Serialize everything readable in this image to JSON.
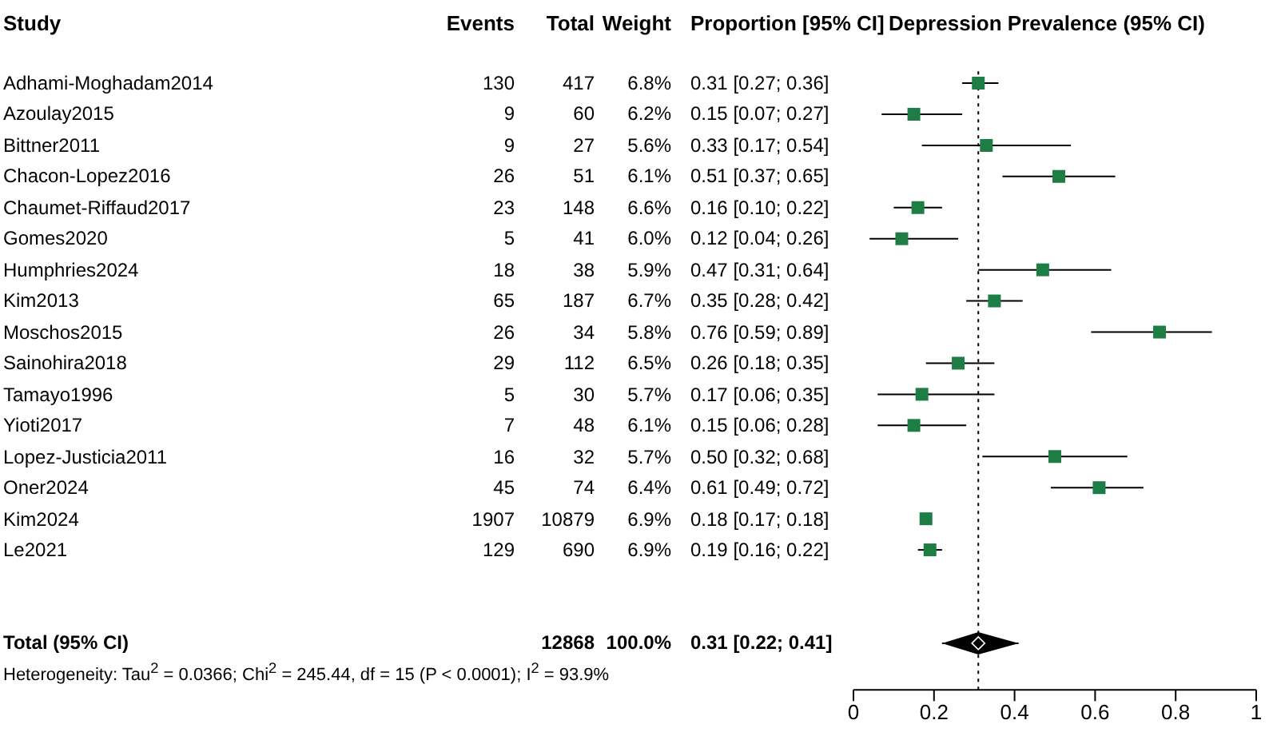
{
  "chart_data": [
    {
      "type": "other",
      "ylabel": "Study",
      "categories": [
        "Adhami-Moghadam2014",
        "Azoulay2015",
        "Bittner2011",
        "Chacon-Lopez2016",
        "Chaumet-Riffaud2017",
        "Gomes2020",
        "Humphries2024",
        "Kim2013",
        "Moschos2015",
        "Sainohira2018",
        "Tamayo1996",
        "Yioti2017",
        "Lopez-Justicia2011",
        "Oner2024",
        "Kim2024",
        "Le2021",
        null,
        null,
        "Total (95% CI)"
      ],
      "series": [
        {
          "name": "Events",
          "values": [
            130,
            9,
            9,
            26,
            23,
            5,
            18,
            65,
            26,
            29,
            5,
            7,
            16,
            45,
            1907,
            129,
            null,
            null,
            null
          ]
        },
        {
          "name": "Total",
          "values": [
            417,
            60,
            27,
            51,
            148,
            41,
            38,
            187,
            34,
            112,
            30,
            48,
            32,
            74,
            10879,
            690,
            null,
            null,
            12868
          ]
        },
        {
          "name": "Weight",
          "values": [
            6.8,
            6.2,
            5.6,
            6.1,
            6.6,
            6.0,
            5.9,
            6.7,
            5.8,
            6.5,
            5.7,
            6.1,
            5.7,
            6.4,
            6.9,
            6.9,
            null,
            null,
            100.0
          ],
          "value_labels": [
            "6.8%",
            "6.2%",
            "5.6%",
            "6.1%",
            "6.6%",
            "6.0%",
            "5.9%",
            "6.7%",
            "5.8%",
            "6.5%",
            "5.7%",
            "6.1%",
            "5.7%",
            "6.4%",
            "6.9%",
            "6.9%",
            null,
            null,
            "100.0%"
          ]
        },
        {
          "name": "Proportion [95% CI]",
          "values": [
            0.31,
            0.15,
            0.33,
            0.51,
            0.16,
            0.12,
            0.47,
            0.35,
            0.76,
            0.26,
            0.17,
            0.15,
            0.5,
            0.61,
            0.18,
            0.19,
            null,
            null,
            0.31
          ],
          "value_labels": [
            "0.31 [0.27; 0.36]",
            "0.15 [0.07; 0.27]",
            "0.33 [0.17; 0.54]",
            "0.51 [0.37; 0.65]",
            "0.16 [0.10; 0.22]",
            "0.12 [0.04; 0.26]",
            "0.47 [0.31; 0.64]",
            "0.35 [0.28; 0.42]",
            "0.76 [0.59; 0.89]",
            "0.26 [0.18; 0.35]",
            "0.17 [0.06; 0.35]",
            "0.15 [0.06; 0.28]",
            "0.50 [0.32; 0.68]",
            "0.61 [0.49; 0.72]",
            "0.18 [0.17; 0.18]",
            "0.19 [0.16; 0.22]",
            null,
            null,
            "0.31 [0.22; 0.41]"
          ]
        }
      ],
      "data_labels": true,
      "annotations": [
        "Heterogeneity: Tau$^{2}$ = 0.0366; Chi$^{2}$ = 245.44, df = 15 (P < 0.0001); I$^{2}$ = 93.9%"
      ]
    },
    {
      "type": "scatter",
      "orientation": "horizontal",
      "title": "Depression Prevalence (95% CI)",
      "categories": [
        null,
        null,
        null,
        null,
        null,
        null,
        null,
        null,
        null,
        null,
        null,
        null,
        null,
        null,
        null,
        null,
        null,
        null,
        null,
        null
      ],
      "series": [
        {
          "type": "scatter",
          "color": "#1e7d45",
          "marker": "square",
          "values": [
            0.31,
            0.15,
            0.33,
            0.51,
            0.16,
            0.12,
            0.47,
            0.35,
            0.76,
            0.26,
            0.17,
            0.15,
            0.5,
            0.61,
            0.18,
            0.19,
            null,
            null,
            null,
            null
          ],
          "errors": [
            [
              0.27,
              0.36
            ],
            [
              0.07,
              0.27
            ],
            [
              0.17,
              0.54
            ],
            [
              0.37,
              0.65
            ],
            [
              0.1,
              0.22
            ],
            [
              0.04,
              0.26
            ],
            [
              0.31,
              0.64
            ],
            [
              0.28,
              0.42
            ],
            [
              0.59,
              0.89
            ],
            [
              0.18,
              0.35
            ],
            [
              0.06,
              0.35
            ],
            [
              0.06,
              0.28
            ],
            [
              0.32,
              0.68
            ],
            [
              0.49,
              0.72
            ],
            null,
            [
              0.16,
              0.22
            ],
            null,
            null,
            null,
            null
          ]
        },
        {
          "type": "scatter",
          "color": "#000000",
          "marker": "diamond",
          "values": [
            null,
            null,
            null,
            null,
            null,
            null,
            null,
            null,
            null,
            null,
            null,
            null,
            null,
            null,
            null,
            null,
            null,
            null,
            0.31,
            null
          ],
          "errors": [
            null,
            null,
            null,
            null,
            null,
            null,
            null,
            null,
            null,
            null,
            null,
            null,
            null,
            null,
            null,
            null,
            null,
            null,
            [
              0.22,
              0.41
            ],
            null
          ]
        }
      ],
      "xlim": [
        0,
        1
      ],
      "xticks": [
        0,
        0.2,
        0.4,
        0.6,
        0.8,
        1
      ],
      "ref_lines": [
        {
          "axis": "x",
          "value": 0.31,
          "line_style": "dotted",
          "color": "#000000"
        }
      ],
      "grid": false,
      "legend": false
    }
  ]
}
